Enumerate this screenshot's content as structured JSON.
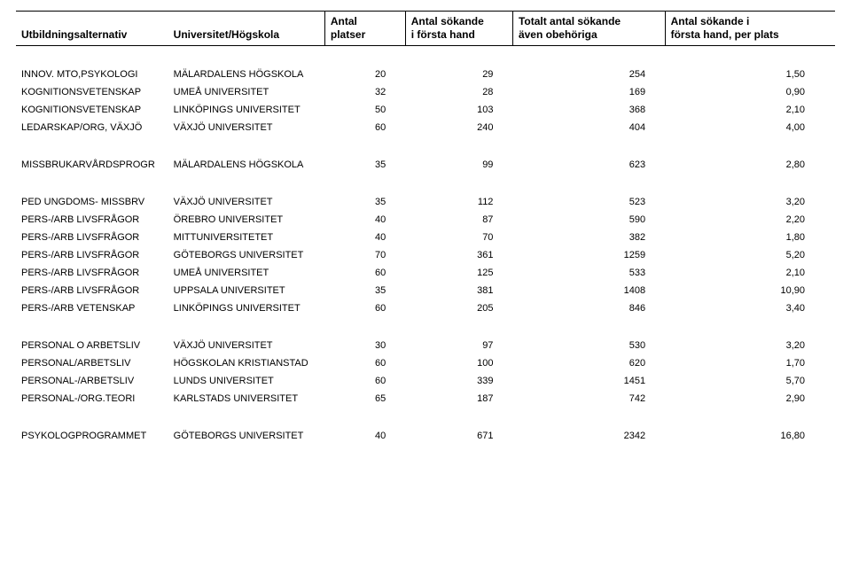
{
  "header": {
    "col1": "Utbildningsalternativ",
    "col2": "Universitet/Högskola",
    "col3_l1": "Antal",
    "col3_l2": "platser",
    "col4_l1": "Antal sökande",
    "col4_l2": "i första hand",
    "col5_l1": "Totalt antal sökande",
    "col5_l2": "även obehöriga",
    "col6_l1": "Antal sökande i",
    "col6_l2": "första hand, per plats"
  },
  "rows": [
    {
      "prog": "INNOV. MTO,PSYKOLOGI",
      "uni": "MÄLARDALENS HÖGSKOLA",
      "platser": "20",
      "sokande1": "29",
      "sokandeTot": "254",
      "perPlats": "1,50",
      "gap": false
    },
    {
      "prog": "KOGNITIONSVETENSKAP",
      "uni": "UMEÅ UNIVERSITET",
      "platser": "32",
      "sokande1": "28",
      "sokandeTot": "169",
      "perPlats": "0,90",
      "gap": false
    },
    {
      "prog": "KOGNITIONSVETENSKAP",
      "uni": "LINKÖPINGS UNIVERSITET",
      "platser": "50",
      "sokande1": "103",
      "sokandeTot": "368",
      "perPlats": "2,10",
      "gap": false
    },
    {
      "prog": "LEDARSKAP/ORG, VÄXJÖ",
      "uni": "VÄXJÖ UNIVERSITET",
      "platser": "60",
      "sokande1": "240",
      "sokandeTot": "404",
      "perPlats": "4,00",
      "gap": true
    },
    {
      "prog": "MISSBRUKARVÅRDSPROGR",
      "uni": "MÄLARDALENS HÖGSKOLA",
      "platser": "35",
      "sokande1": "99",
      "sokandeTot": "623",
      "perPlats": "2,80",
      "gap": true
    },
    {
      "prog": "PED UNGDOMS- MISSBRV",
      "uni": "VÄXJÖ UNIVERSITET",
      "platser": "35",
      "sokande1": "112",
      "sokandeTot": "523",
      "perPlats": "3,20",
      "gap": false
    },
    {
      "prog": "PERS-/ARB LIVSFRÅGOR",
      "uni": "ÖREBRO UNIVERSITET",
      "platser": "40",
      "sokande1": "87",
      "sokandeTot": "590",
      "perPlats": "2,20",
      "gap": false
    },
    {
      "prog": "PERS-/ARB LIVSFRÅGOR",
      "uni": "MITTUNIVERSITETET",
      "platser": "40",
      "sokande1": "70",
      "sokandeTot": "382",
      "perPlats": "1,80",
      "gap": false
    },
    {
      "prog": "PERS-/ARB LIVSFRÅGOR",
      "uni": "GÖTEBORGS UNIVERSITET",
      "platser": "70",
      "sokande1": "361",
      "sokandeTot": "1259",
      "perPlats": "5,20",
      "gap": false
    },
    {
      "prog": "PERS-/ARB LIVSFRÅGOR",
      "uni": "UMEÅ UNIVERSITET",
      "platser": "60",
      "sokande1": "125",
      "sokandeTot": "533",
      "perPlats": "2,10",
      "gap": false
    },
    {
      "prog": "PERS-/ARB LIVSFRÅGOR",
      "uni": "UPPSALA UNIVERSITET",
      "platser": "35",
      "sokande1": "381",
      "sokandeTot": "1408",
      "perPlats": "10,90",
      "gap": false
    },
    {
      "prog": "PERS-/ARB VETENSKAP",
      "uni": "LINKÖPINGS UNIVERSITET",
      "platser": "60",
      "sokande1": "205",
      "sokandeTot": "846",
      "perPlats": "3,40",
      "gap": true
    },
    {
      "prog": "PERSONAL O ARBETSLIV",
      "uni": "VÄXJÖ UNIVERSITET",
      "platser": "30",
      "sokande1": "97",
      "sokandeTot": "530",
      "perPlats": "3,20",
      "gap": false
    },
    {
      "prog": "PERSONAL/ARBETSLIV",
      "uni": "HÖGSKOLAN KRISTIANSTAD",
      "platser": "60",
      "sokande1": "100",
      "sokandeTot": "620",
      "perPlats": "1,70",
      "gap": false
    },
    {
      "prog": "PERSONAL-/ARBETSLIV",
      "uni": "LUNDS UNIVERSITET",
      "platser": "60",
      "sokande1": "339",
      "sokandeTot": "1451",
      "perPlats": "5,70",
      "gap": false
    },
    {
      "prog": "PERSONAL-/ORG.TEORI",
      "uni": "KARLSTADS UNIVERSITET",
      "platser": "65",
      "sokande1": "187",
      "sokandeTot": "742",
      "perPlats": "2,90",
      "gap": true
    },
    {
      "prog": "PSYKOLOGPROGRAMMET",
      "uni": "GÖTEBORGS UNIVERSITET",
      "platser": "40",
      "sokande1": "671",
      "sokandeTot": "2342",
      "perPlats": "16,80",
      "gap": false
    }
  ]
}
